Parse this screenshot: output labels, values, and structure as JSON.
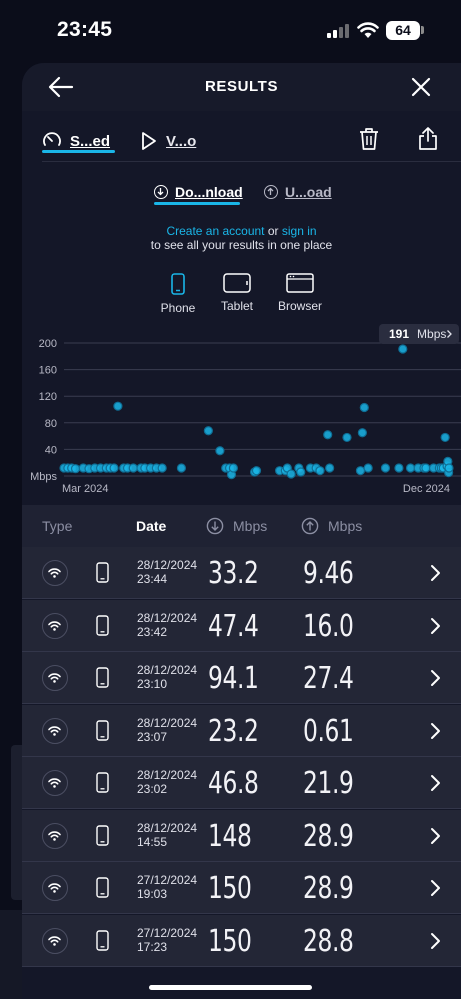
{
  "status_bar": {
    "time": "23:45",
    "battery": "64"
  },
  "header": {
    "title": "RESULTS"
  },
  "tabs": [
    {
      "label": "S...ed"
    },
    {
      "label": "V...o"
    }
  ],
  "subtabs": [
    {
      "label": "Do...nload"
    },
    {
      "label": "U...oad"
    }
  ],
  "account": {
    "link1": "Create an account",
    "mid": " or ",
    "link2": "sign in",
    "line2": "to see all your results in one place"
  },
  "devices": [
    {
      "label": "Phone"
    },
    {
      "label": "Tablet"
    },
    {
      "label": "Browser"
    }
  ],
  "tooltip": {
    "value": "191",
    "unit": "Mbps"
  },
  "chart_data": {
    "type": "scatter",
    "ylabel": "Mbps",
    "yticks": [
      40,
      80,
      120,
      160,
      200
    ],
    "ylim": [
      0,
      205
    ],
    "xlabels": [
      "Mar 2024",
      "Dec 2024"
    ],
    "grid": true,
    "color": "#1ab6e8",
    "points": [
      [
        0.0,
        12
      ],
      [
        0.01,
        12
      ],
      [
        0.02,
        12
      ],
      [
        0.03,
        11
      ],
      [
        0.05,
        12
      ],
      [
        0.065,
        11
      ],
      [
        0.08,
        12
      ],
      [
        0.095,
        12
      ],
      [
        0.11,
        12
      ],
      [
        0.12,
        12
      ],
      [
        0.13,
        12
      ],
      [
        0.14,
        105
      ],
      [
        0.155,
        12
      ],
      [
        0.165,
        12
      ],
      [
        0.18,
        12
      ],
      [
        0.2,
        12
      ],
      [
        0.21,
        12
      ],
      [
        0.225,
        12
      ],
      [
        0.24,
        12
      ],
      [
        0.255,
        12
      ],
      [
        0.305,
        12
      ],
      [
        0.375,
        68
      ],
      [
        0.405,
        38
      ],
      [
        0.42,
        12
      ],
      [
        0.43,
        12
      ],
      [
        0.435,
        2
      ],
      [
        0.44,
        12
      ],
      [
        0.495,
        6
      ],
      [
        0.5,
        8
      ],
      [
        0.56,
        8
      ],
      [
        0.575,
        8
      ],
      [
        0.58,
        12
      ],
      [
        0.59,
        3
      ],
      [
        0.61,
        12
      ],
      [
        0.615,
        6
      ],
      [
        0.64,
        12
      ],
      [
        0.655,
        12
      ],
      [
        0.665,
        8
      ],
      [
        0.685,
        62
      ],
      [
        0.69,
        12
      ],
      [
        0.735,
        58
      ],
      [
        0.77,
        8
      ],
      [
        0.775,
        65
      ],
      [
        0.78,
        103
      ],
      [
        0.79,
        12
      ],
      [
        0.835,
        12
      ],
      [
        0.87,
        12
      ],
      [
        0.88,
        191
      ],
      [
        0.9,
        12
      ],
      [
        0.92,
        12
      ],
      [
        0.935,
        12
      ],
      [
        0.94,
        12
      ],
      [
        0.96,
        12
      ],
      [
        0.975,
        12
      ],
      [
        0.98,
        12
      ],
      [
        0.985,
        12
      ],
      [
        0.99,
        58
      ],
      [
        0.995,
        15
      ],
      [
        0.997,
        22
      ],
      [
        0.999,
        5
      ],
      [
        1.0,
        12
      ]
    ]
  },
  "list": {
    "headers": {
      "type": "Type",
      "date": "Date",
      "dl_unit": "Mbps",
      "ul_unit": "Mbps"
    },
    "rows": [
      {
        "date": "28/12/2024",
        "time": "23:44",
        "download": "33.2",
        "upload": "9.46"
      },
      {
        "date": "28/12/2024",
        "time": "23:42",
        "download": "47.4",
        "upload": "16.0"
      },
      {
        "date": "28/12/2024",
        "time": "23:10",
        "download": "94.1",
        "upload": "27.4"
      },
      {
        "date": "28/12/2024",
        "time": "23:07",
        "download": "23.2",
        "upload": "0.61"
      },
      {
        "date": "28/12/2024",
        "time": "23:02",
        "download": "46.8",
        "upload": "21.9"
      },
      {
        "date": "28/12/2024",
        "time": "14:55",
        "download": "148",
        "upload": "28.9"
      },
      {
        "date": "27/12/2024",
        "time": "19:03",
        "download": "150",
        "upload": "28.9"
      },
      {
        "date": "27/12/2024",
        "time": "17:23",
        "download": "150",
        "upload": "28.8"
      }
    ]
  },
  "colors": {
    "accent": "#1ab6e8",
    "background": "#141728",
    "row": "#232636"
  }
}
